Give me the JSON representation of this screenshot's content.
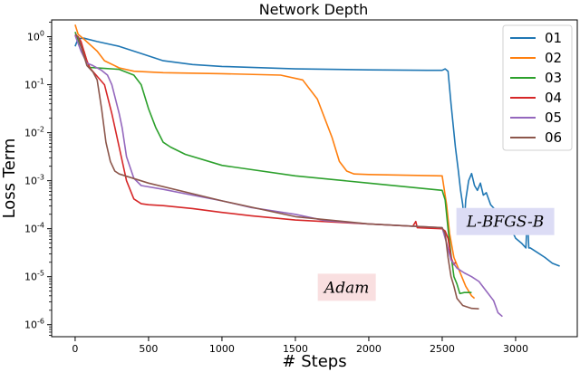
{
  "chart_data": {
    "type": "line",
    "title": "Network Depth",
    "xlabel": "# Steps",
    "ylabel": "Loss Term",
    "xlim": [
      -160,
      3420
    ],
    "ylim_log10": [
      -6.25,
      0.35
    ],
    "y_scale": "log",
    "x_ticks": [
      0,
      500,
      1000,
      1500,
      2000,
      2500,
      3000
    ],
    "x_tick_labels": [
      "0",
      "500",
      "1000",
      "1500",
      "2000",
      "2500",
      "3000"
    ],
    "y_ticks_log10": [
      0,
      -1,
      -2,
      -3,
      -4,
      -5,
      -6
    ],
    "y_tick_labels": [
      {
        "base": "10",
        "exp": "0"
      },
      {
        "base": "10",
        "exp": "-1"
      },
      {
        "base": "10",
        "exp": "-2"
      },
      {
        "base": "10",
        "exp": "-3"
      },
      {
        "base": "10",
        "exp": "-4"
      },
      {
        "base": "10",
        "exp": "-5"
      },
      {
        "base": "10",
        "exp": "-6"
      }
    ],
    "grid": false,
    "legend_position": "top-right",
    "annotations": [
      {
        "text": "Adam",
        "x": 1850,
        "y_log10": -5.22,
        "color": "#f9dfe0"
      },
      {
        "text": "L-BFGS-B",
        "x": 2930,
        "y_log10": -3.85,
        "color": "#dcdcf5"
      }
    ],
    "series": [
      {
        "name": "01",
        "color": "#1f77b4",
        "points": [
          [
            0,
            -0.2
          ],
          [
            20,
            -0.04
          ],
          [
            60,
            -0.03
          ],
          [
            150,
            -0.1
          ],
          [
            300,
            -0.2
          ],
          [
            450,
            -0.35
          ],
          [
            600,
            -0.5
          ],
          [
            800,
            -0.58
          ],
          [
            1000,
            -0.62
          ],
          [
            1500,
            -0.67
          ],
          [
            2000,
            -0.69
          ],
          [
            2400,
            -0.7
          ],
          [
            2500,
            -0.7
          ],
          [
            2520,
            -0.67
          ],
          [
            2540,
            -0.72
          ],
          [
            2560,
            -1.4
          ],
          [
            2590,
            -2.3
          ],
          [
            2610,
            -2.8
          ],
          [
            2625,
            -3.2
          ],
          [
            2640,
            -3.5
          ],
          [
            2650,
            -3.9
          ],
          [
            2660,
            -3.4
          ],
          [
            2680,
            -3.0
          ],
          [
            2700,
            -2.85
          ],
          [
            2720,
            -3.1
          ],
          [
            2740,
            -3.2
          ],
          [
            2760,
            -3.05
          ],
          [
            2780,
            -3.3
          ],
          [
            2800,
            -3.25
          ],
          [
            2830,
            -3.5
          ],
          [
            2860,
            -3.6
          ],
          [
            2880,
            -3.75
          ],
          [
            2900,
            -3.85
          ],
          [
            2920,
            -3.95
          ],
          [
            2940,
            -4.0
          ],
          [
            2960,
            -3.95
          ],
          [
            3000,
            -4.2
          ],
          [
            3040,
            -4.3
          ],
          [
            3070,
            -4.4
          ],
          [
            3080,
            -3.7
          ],
          [
            3090,
            -4.4
          ],
          [
            3100,
            -4.4
          ],
          [
            3150,
            -4.5
          ],
          [
            3200,
            -4.6
          ],
          [
            3250,
            -4.72
          ],
          [
            3300,
            -4.78
          ]
        ]
      },
      {
        "name": "02",
        "color": "#ff7f0e",
        "points": [
          [
            0,
            0.25
          ],
          [
            20,
            0.05
          ],
          [
            60,
            -0.05
          ],
          [
            150,
            -0.3
          ],
          [
            200,
            -0.5
          ],
          [
            300,
            -0.65
          ],
          [
            400,
            -0.72
          ],
          [
            600,
            -0.75
          ],
          [
            1000,
            -0.77
          ],
          [
            1400,
            -0.8
          ],
          [
            1550,
            -0.9
          ],
          [
            1650,
            -1.3
          ],
          [
            1750,
            -2.1
          ],
          [
            1800,
            -2.6
          ],
          [
            1850,
            -2.8
          ],
          [
            1900,
            -2.86
          ],
          [
            2000,
            -2.87
          ],
          [
            2500,
            -2.9
          ],
          [
            2530,
            -3.5
          ],
          [
            2550,
            -4.1
          ],
          [
            2580,
            -4.6
          ],
          [
            2620,
            -4.9
          ],
          [
            2660,
            -5.2
          ],
          [
            2700,
            -5.4
          ],
          [
            2720,
            -5.45
          ]
        ]
      },
      {
        "name": "03",
        "color": "#2ca02c",
        "points": [
          [
            0,
            0.1
          ],
          [
            30,
            -0.15
          ],
          [
            60,
            -0.3
          ],
          [
            80,
            -0.52
          ],
          [
            100,
            -0.64
          ],
          [
            200,
            -0.66
          ],
          [
            300,
            -0.68
          ],
          [
            400,
            -0.8
          ],
          [
            450,
            -1.0
          ],
          [
            500,
            -1.5
          ],
          [
            550,
            -1.9
          ],
          [
            600,
            -2.2
          ],
          [
            650,
            -2.3
          ],
          [
            750,
            -2.45
          ],
          [
            1000,
            -2.68
          ],
          [
            1500,
            -2.9
          ],
          [
            2000,
            -3.05
          ],
          [
            2500,
            -3.2
          ],
          [
            2520,
            -3.4
          ],
          [
            2540,
            -4.0
          ],
          [
            2560,
            -4.55
          ],
          [
            2580,
            -5.0
          ],
          [
            2600,
            -5.15
          ],
          [
            2620,
            -5.35
          ],
          [
            2650,
            -5.33
          ],
          [
            2700,
            -5.33
          ]
        ]
      },
      {
        "name": "04",
        "color": "#d62728",
        "points": [
          [
            0,
            0.02
          ],
          [
            20,
            0.0
          ],
          [
            40,
            -0.1
          ],
          [
            60,
            -0.3
          ],
          [
            80,
            -0.5
          ],
          [
            100,
            -0.65
          ],
          [
            200,
            -1.0
          ],
          [
            250,
            -1.6
          ],
          [
            300,
            -2.3
          ],
          [
            350,
            -3.0
          ],
          [
            400,
            -3.38
          ],
          [
            450,
            -3.48
          ],
          [
            500,
            -3.5
          ],
          [
            600,
            -3.52
          ],
          [
            800,
            -3.58
          ],
          [
            1000,
            -3.66
          ],
          [
            1200,
            -3.73
          ],
          [
            1500,
            -3.82
          ],
          [
            2000,
            -3.9
          ],
          [
            2300,
            -3.95
          ],
          [
            2320,
            -3.85
          ],
          [
            2330,
            -3.98
          ],
          [
            2500,
            -4.0
          ],
          [
            2520,
            -4.05
          ],
          [
            2540,
            -4.2
          ],
          [
            2560,
            -4.6
          ],
          [
            2580,
            -4.75
          ],
          [
            2590,
            -4.7
          ]
        ]
      },
      {
        "name": "05",
        "color": "#9467bd",
        "points": [
          [
            0,
            0.03
          ],
          [
            40,
            -0.3
          ],
          [
            80,
            -0.55
          ],
          [
            120,
            -0.6
          ],
          [
            180,
            -0.7
          ],
          [
            220,
            -0.8
          ],
          [
            250,
            -1.0
          ],
          [
            300,
            -1.6
          ],
          [
            320,
            -1.9
          ],
          [
            350,
            -2.5
          ],
          [
            400,
            -2.95
          ],
          [
            450,
            -3.1
          ],
          [
            600,
            -3.18
          ],
          [
            800,
            -3.3
          ],
          [
            1000,
            -3.42
          ],
          [
            1200,
            -3.56
          ],
          [
            1500,
            -3.7
          ],
          [
            1700,
            -3.83
          ],
          [
            2000,
            -3.9
          ],
          [
            2500,
            -3.98
          ],
          [
            2530,
            -4.3
          ],
          [
            2560,
            -4.65
          ],
          [
            2600,
            -4.82
          ],
          [
            2650,
            -4.92
          ],
          [
            2700,
            -5.0
          ],
          [
            2750,
            -5.1
          ],
          [
            2800,
            -5.3
          ],
          [
            2850,
            -5.5
          ],
          [
            2880,
            -5.75
          ],
          [
            2910,
            -5.83
          ]
        ]
      },
      {
        "name": "06",
        "color": "#8c564b",
        "points": [
          [
            0,
            0.05
          ],
          [
            20,
            0.0
          ],
          [
            50,
            -0.3
          ],
          [
            80,
            -0.6
          ],
          [
            120,
            -0.73
          ],
          [
            150,
            -0.9
          ],
          [
            180,
            -1.5
          ],
          [
            210,
            -2.2
          ],
          [
            240,
            -2.6
          ],
          [
            270,
            -2.8
          ],
          [
            300,
            -2.86
          ],
          [
            500,
            -3.05
          ],
          [
            1000,
            -3.42
          ],
          [
            1500,
            -3.75
          ],
          [
            2000,
            -3.9
          ],
          [
            2500,
            -3.98
          ],
          [
            2520,
            -4.1
          ],
          [
            2540,
            -4.6
          ],
          [
            2560,
            -5.0
          ],
          [
            2580,
            -5.2
          ],
          [
            2600,
            -5.45
          ],
          [
            2640,
            -5.6
          ],
          [
            2700,
            -5.66
          ],
          [
            2750,
            -5.67
          ]
        ]
      }
    ]
  }
}
